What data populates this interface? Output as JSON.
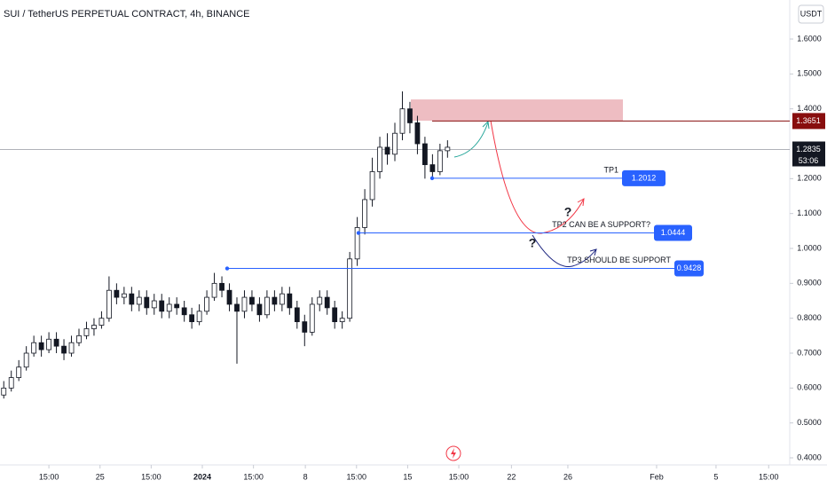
{
  "chart_data": {
    "type": "candlestick",
    "title": "SUI / TetherUS PERPETUAL CONTRACT, 4h, BINANCE",
    "currency": "USDT",
    "open": [
      0.58,
      0.6,
      0.63,
      0.66,
      0.7,
      0.73,
      0.71,
      0.74,
      0.72,
      0.7,
      0.73,
      0.75,
      0.77,
      0.78,
      0.8,
      0.88,
      0.86,
      0.87,
      0.84,
      0.86,
      0.83,
      0.85,
      0.82,
      0.84,
      0.83,
      0.81,
      0.79,
      0.82,
      0.86,
      0.9,
      0.88,
      0.84,
      0.82,
      0.86,
      0.84,
      0.81,
      0.86,
      0.84,
      0.87,
      0.83,
      0.79,
      0.76,
      0.84,
      0.86,
      0.83,
      0.79,
      0.8,
      0.97,
      1.06,
      1.14,
      1.22,
      1.29,
      1.27,
      1.33,
      1.4,
      1.36,
      1.3,
      1.24,
      1.22,
      1.28
    ],
    "high": [
      0.62,
      0.65,
      0.68,
      0.72,
      0.75,
      0.75,
      0.76,
      0.76,
      0.74,
      0.75,
      0.77,
      0.79,
      0.8,
      0.82,
      0.92,
      0.9,
      0.89,
      0.89,
      0.88,
      0.88,
      0.87,
      0.87,
      0.86,
      0.86,
      0.85,
      0.83,
      0.84,
      0.88,
      0.93,
      0.92,
      0.9,
      0.86,
      0.88,
      0.88,
      0.86,
      0.88,
      0.88,
      0.89,
      0.89,
      0.85,
      0.81,
      0.86,
      0.88,
      0.88,
      0.85,
      0.82,
      0.99,
      1.09,
      1.17,
      1.26,
      1.32,
      1.33,
      1.36,
      1.45,
      1.42,
      1.38,
      1.32,
      1.27,
      1.3,
      1.31
    ],
    "low": [
      0.57,
      0.59,
      0.62,
      0.65,
      0.69,
      0.69,
      0.7,
      0.7,
      0.68,
      0.69,
      0.72,
      0.74,
      0.75,
      0.77,
      0.79,
      0.84,
      0.84,
      0.82,
      0.82,
      0.81,
      0.81,
      0.8,
      0.8,
      0.81,
      0.79,
      0.77,
      0.78,
      0.81,
      0.85,
      0.86,
      0.82,
      0.67,
      0.8,
      0.82,
      0.79,
      0.8,
      0.82,
      0.82,
      0.81,
      0.77,
      0.72,
      0.75,
      0.82,
      0.81,
      0.77,
      0.77,
      0.79,
      0.95,
      1.04,
      1.12,
      1.2,
      1.24,
      1.25,
      1.31,
      1.33,
      1.27,
      1.2,
      1.2,
      1.21,
      1.26
    ],
    "close": [
      0.6,
      0.63,
      0.66,
      0.7,
      0.73,
      0.71,
      0.74,
      0.72,
      0.7,
      0.73,
      0.75,
      0.77,
      0.78,
      0.8,
      0.88,
      0.86,
      0.87,
      0.84,
      0.86,
      0.83,
      0.85,
      0.82,
      0.84,
      0.83,
      0.81,
      0.79,
      0.82,
      0.86,
      0.9,
      0.88,
      0.84,
      0.82,
      0.86,
      0.84,
      0.81,
      0.86,
      0.84,
      0.87,
      0.83,
      0.79,
      0.76,
      0.84,
      0.86,
      0.83,
      0.79,
      0.8,
      0.97,
      1.06,
      1.14,
      1.22,
      1.29,
      1.27,
      1.33,
      1.4,
      1.36,
      1.3,
      1.24,
      1.22,
      1.28,
      1.29
    ],
    "up_color": "#ffffff",
    "down_color": "#131722",
    "xlim": [
      0,
      105
    ],
    "xticks": [
      {
        "value": 6.5,
        "label": "15:00"
      },
      {
        "value": 13.3,
        "label": "25"
      },
      {
        "value": 20.1,
        "label": "15:00"
      },
      {
        "value": 26.9,
        "label": "2024",
        "bold": true
      },
      {
        "value": 33.7,
        "label": "15:00"
      },
      {
        "value": 40.6,
        "label": "8"
      },
      {
        "value": 47.4,
        "label": "15:00"
      },
      {
        "value": 54.2,
        "label": "15"
      },
      {
        "value": 61.0,
        "label": "15:00"
      },
      {
        "value": 68.0,
        "label": "22"
      },
      {
        "value": 75.5,
        "label": "26"
      },
      {
        "value": 87.3,
        "label": "Feb"
      },
      {
        "value": 95.2,
        "label": "5"
      },
      {
        "value": 102.2,
        "label": "15:00"
      }
    ],
    "ylim": [
      0.3797,
      1.7119
    ],
    "yticks": [
      {
        "value": 1.6,
        "label": "1.6000"
      },
      {
        "value": 1.5,
        "label": "1.5000"
      },
      {
        "value": 1.4,
        "label": "1.4000"
      },
      {
        "value": 1.2,
        "label": "1.2000"
      },
      {
        "value": 1.1,
        "label": "1.1000"
      },
      {
        "value": 1.0,
        "label": "1.0000"
      },
      {
        "value": 0.9,
        "label": "0.9000"
      },
      {
        "value": 0.8,
        "label": "0.8000"
      },
      {
        "value": 0.7,
        "label": "0.7000"
      },
      {
        "value": 0.6,
        "label": "0.6000"
      },
      {
        "value": 0.5,
        "label": "0.5000"
      },
      {
        "value": 0.4,
        "label": "0.4000"
      }
    ],
    "last_price": 1.2835,
    "countdown": "53:06",
    "resistance": {
      "value": 1.3651,
      "color": "#880e0e"
    },
    "zone": {
      "top": 1.427,
      "bottom": 1.366,
      "color": "#e8a7ae"
    },
    "levels": [
      {
        "label": "TP1",
        "value": 1.2012,
        "color": "#2962ff"
      },
      {
        "label": "TP2 CAN BE A SUPPORT?",
        "value": 1.0444,
        "color": "#2962ff"
      },
      {
        "label": "TP3 SHOULD BE SUPPORT",
        "value": 0.9428,
        "color": "#2962ff"
      }
    ],
    "annotations": [
      "?",
      "?"
    ]
  }
}
